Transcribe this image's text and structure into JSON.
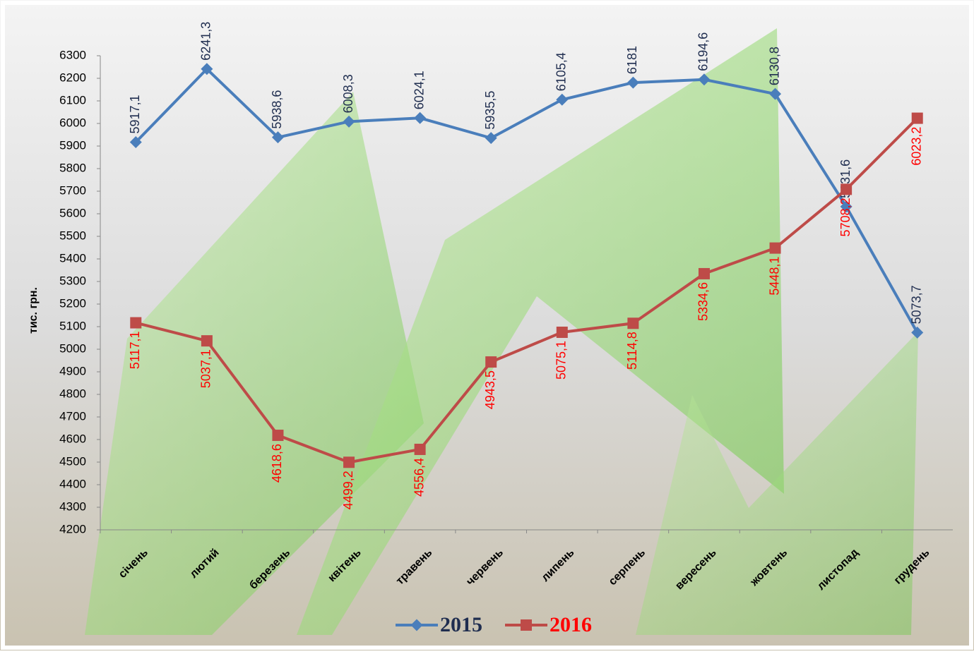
{
  "chart_data": {
    "type": "line",
    "y_label": "тис. грн.",
    "categories": [
      "січень",
      "лютий",
      "березень",
      "квітень",
      "травень",
      "червень",
      "липень",
      "серпень",
      "вересень",
      "жовтень",
      "листопад",
      "грудень"
    ],
    "series": [
      {
        "name": "2015",
        "color": "#4a7ebb",
        "label_color": "#1f2d4f",
        "values": [
          5917.1,
          6241.3,
          5938.6,
          6008.3,
          6024.1,
          5935.5,
          6105.4,
          6181,
          6194.6,
          6130.8,
          5631.6,
          5073.7
        ],
        "value_labels": [
          "5917,1",
          "6241,3",
          "5938,6",
          "6008,3",
          "6024,1",
          "5935,5",
          "6105,4",
          "6181",
          "6194,6",
          "6130,8",
          "5631,6",
          "5073,7"
        ]
      },
      {
        "name": "2016",
        "color": "#be4b48",
        "label_color": "#ff0000",
        "values": [
          5117.1,
          5037.1,
          4618.6,
          4499.2,
          4556.4,
          4943.5,
          5075.1,
          5114.8,
          5334.6,
          5448.1,
          5708.2,
          6023.2
        ],
        "value_labels": [
          "5117,1",
          "5037,1",
          "4618,6",
          "4499,2",
          "4556,4",
          "4943,5",
          "5075,1",
          "5114,8",
          "5334,6",
          "5448,1",
          "5708,2",
          "6023,2"
        ]
      }
    ],
    "ylim": [
      4200,
      6300
    ],
    "yticks": [
      4200,
      4300,
      4400,
      4500,
      4600,
      4700,
      4800,
      4900,
      5000,
      5100,
      5200,
      5300,
      5400,
      5500,
      5600,
      5700,
      5800,
      5900,
      6000,
      6100,
      6200,
      6300
    ],
    "legend": "bottom"
  }
}
